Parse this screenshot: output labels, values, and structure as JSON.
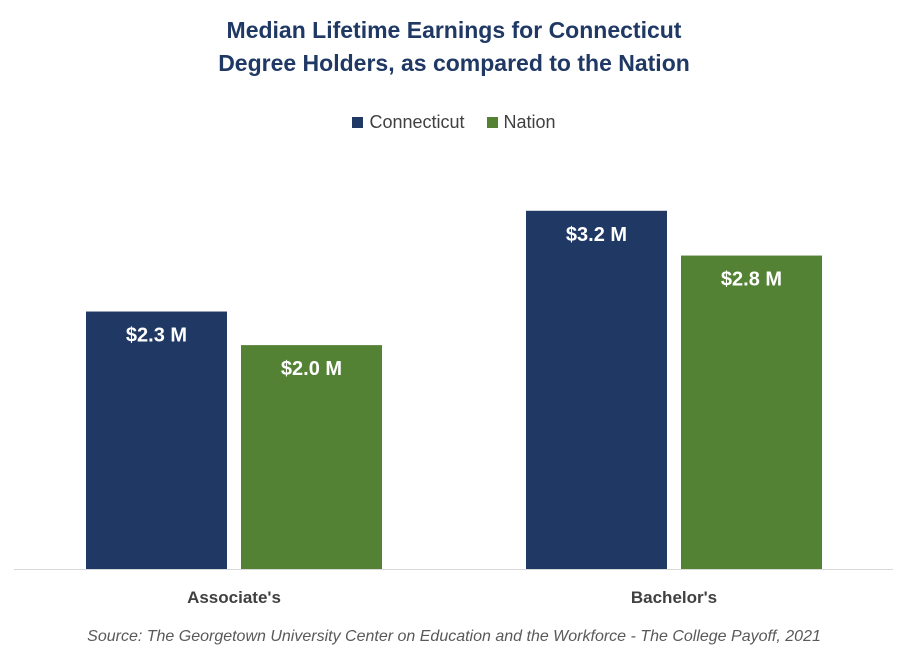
{
  "colors": {
    "connecticut": "#203864",
    "nation": "#548235",
    "title": "#1f3864"
  },
  "chart_data": {
    "type": "bar",
    "title_lines": [
      "Median Lifetime Earnings for Connecticut",
      "Degree Holders, as compared to the Nation"
    ],
    "categories": [
      "Associate's",
      "Bachelor's"
    ],
    "series": [
      {
        "name": "Connecticut",
        "values": [
          2.3,
          3.2
        ],
        "labels": [
          "$2.3 M",
          "$3.2 M"
        ],
        "color": "#203864"
      },
      {
        "name": "Nation",
        "values": [
          2.0,
          2.8
        ],
        "labels": [
          "$2.0 M",
          "$2.8 M"
        ],
        "color": "#548235"
      }
    ],
    "ylim": [
      0,
      3.6
    ],
    "grid": false,
    "legend_position": "top"
  },
  "source": "Source: The Georgetown University Center on Education and the Workforce - The College Payoff, 2021"
}
